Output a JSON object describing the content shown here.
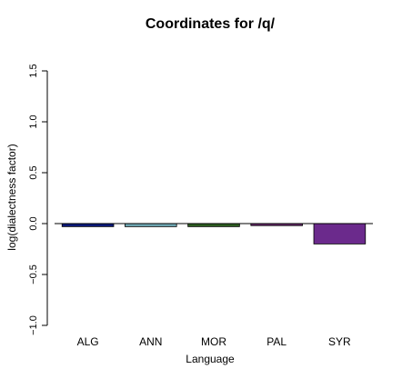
{
  "chart_data": {
    "type": "bar",
    "title": "Coordinates for /q/",
    "xlabel": "Language",
    "ylabel": "log(dialectness factor)",
    "categories": [
      "ALG",
      "ANN",
      "MOR",
      "PAL",
      "SYR"
    ],
    "values": [
      -0.03,
      -0.03,
      -0.03,
      -0.02,
      -0.2
    ],
    "colors": [
      "#0c1a7a",
      "#6fa8b3",
      "#2e5e22",
      "#6a2a6e",
      "#6b2a8c"
    ],
    "ylim": [
      -1.0,
      1.5
    ],
    "yticks": [
      -1.0,
      -0.5,
      0.0,
      0.5,
      1.0,
      1.5
    ],
    "ytick_labels": [
      "−1.0",
      "−0.5",
      "0.0",
      "0.5",
      "1.0",
      "1.5"
    ],
    "baseline": 0,
    "grid": false,
    "legend": "none"
  }
}
